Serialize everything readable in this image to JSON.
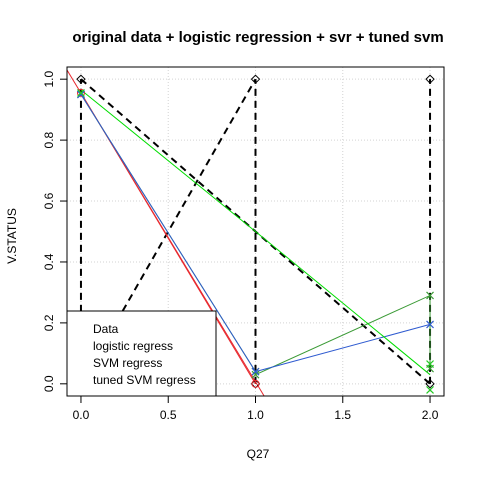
{
  "chart_data": {
    "type": "scatter",
    "title": "original data + logistic regression + svr + tuned svm",
    "xlabel": "Q27",
    "ylabel": "V.STATUS",
    "xlim": [
      -0.08,
      2.08
    ],
    "ylim": [
      -0.04,
      1.04
    ],
    "xticks": [
      0.0,
      0.5,
      1.0,
      1.5,
      2.0
    ],
    "xtick_labels": [
      "0.0",
      "0.5",
      "1.0",
      "1.5",
      "2.0"
    ],
    "yticks": [
      0.0,
      0.2,
      0.4,
      0.6,
      0.8,
      1.0
    ],
    "ytick_labels": [
      "0.0",
      "0.2",
      "0.4",
      "0.6",
      "0.8",
      "1.0"
    ],
    "grid": true,
    "legend_position": "bottom-left",
    "series": [
      {
        "name": "Data",
        "kind": "points",
        "marker": "diamond",
        "color": "#000000",
        "x": [
          0,
          0,
          1,
          1,
          2,
          2
        ],
        "y": [
          0,
          1,
          0,
          1,
          0,
          1
        ]
      },
      {
        "name": "logistic regress",
        "kind": "line-points",
        "marker": "circle",
        "color": "#e8292f",
        "x": [
          0,
          1
        ],
        "y": [
          0.955,
          0.0
        ]
      },
      {
        "name": "SVM regress",
        "kind": "line-points",
        "marker": "x",
        "color": "#3a9a35",
        "x": [
          0,
          1,
          1,
          2,
          2
        ],
        "y": [
          0.95,
          0.04,
          0.03,
          0.29,
          0.05
        ]
      },
      {
        "name": "tuned SVM regress",
        "kind": "line-points",
        "marker": "x",
        "color": "#2f5bd0",
        "x": [
          0,
          1,
          2
        ],
        "y": [
          0.95,
          0.04,
          0.195
        ]
      },
      {
        "name": "",
        "kind": "line",
        "color": "#00dd00",
        "x": [
          0,
          1,
          2
        ],
        "y": [
          0.965,
          0.5,
          0.03
        ]
      },
      {
        "name": "",
        "kind": "points",
        "marker": "x",
        "color": "#22cc22",
        "x": [
          0,
          2,
          2
        ],
        "y": [
          0.955,
          0.065,
          -0.02
        ]
      }
    ],
    "overlay_lines": [
      {
        "color": "#000000",
        "dash": "dashed",
        "x": [
          0,
          1,
          2
        ],
        "y": [
          1,
          0.5,
          0
        ]
      },
      {
        "color": "#000000",
        "dash": "dashed",
        "x": [
          0,
          1
        ],
        "y": [
          0,
          1
        ]
      },
      {
        "color": "#000000",
        "dash": "dashed",
        "x": [
          0,
          0
        ],
        "y": [
          0,
          1
        ]
      },
      {
        "color": "#000000",
        "dash": "dashed",
        "x": [
          1,
          1
        ],
        "y": [
          0,
          1
        ]
      },
      {
        "color": "#000000",
        "dash": "dashed",
        "x": [
          2,
          2
        ],
        "y": [
          0,
          1
        ]
      },
      {
        "color": "#e8292f",
        "dash": "solid",
        "x": [
          -0.08,
          1.06
        ],
        "y": [
          1.03,
          -0.05
        ]
      }
    ],
    "legend": [
      "Data",
      "logistic regress",
      "SVM regress",
      "tuned SVM regress"
    ]
  }
}
